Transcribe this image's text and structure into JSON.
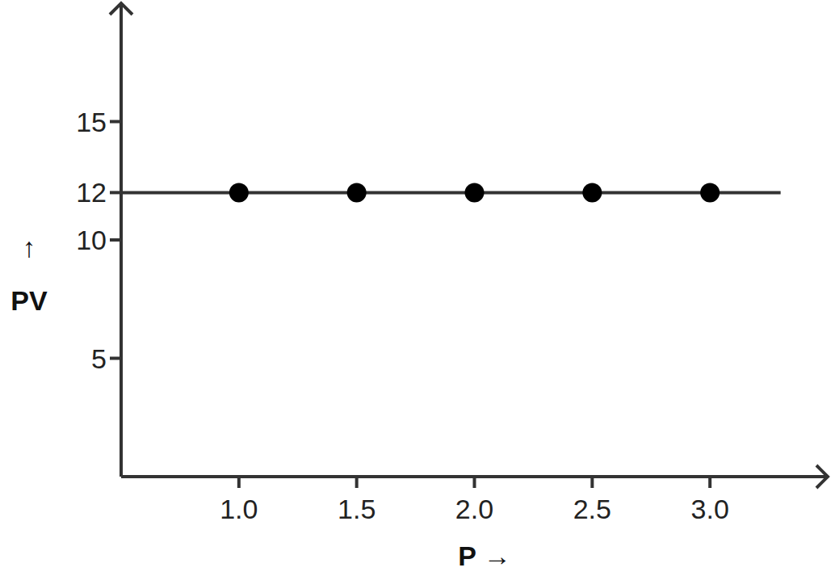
{
  "chart_data": {
    "type": "scatter",
    "x_label": "P →",
    "y_label": "↑ PV",
    "xlim": [
      0.5,
      3.5
    ],
    "xticks": [
      {
        "value": 1,
        "label": "1.0"
      },
      {
        "value": 1.5,
        "label": "1.5"
      },
      {
        "value": 2,
        "label": "2.0"
      },
      {
        "value": 2.5,
        "label": "2.5"
      },
      {
        "value": 3,
        "label": "3.0"
      }
    ],
    "ylim": [
      0,
      20
    ],
    "yticks": [
      5,
      10,
      12,
      15
    ],
    "grid": false,
    "series": [
      {
        "type": "line",
        "x": [
          0.5,
          3.3
        ],
        "values": [
          12,
          12
        ],
        "color": "#333333",
        "marker": "none",
        "line_style": "solid"
      },
      {
        "type": "scatter",
        "x": [
          1,
          1.5,
          2,
          2.5,
          3
        ],
        "values": [
          12,
          12,
          12,
          12,
          12
        ],
        "color": "#000000",
        "marker": "circle"
      }
    ]
  }
}
